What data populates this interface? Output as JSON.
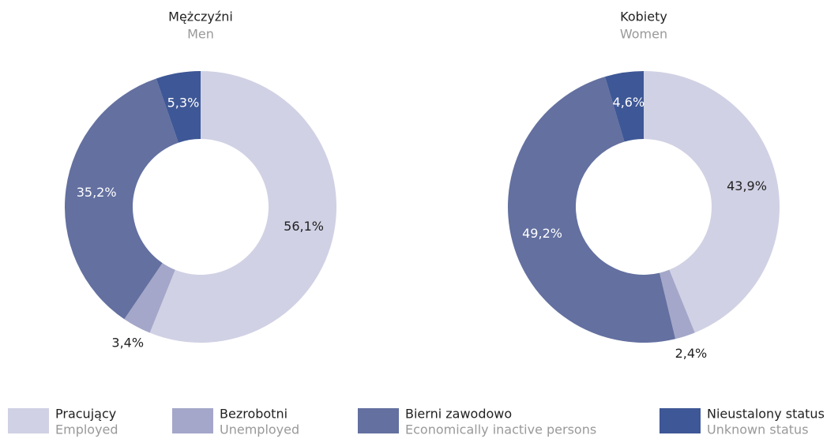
{
  "chart_data": [
    {
      "type": "pie",
      "title": "Mężczyźni",
      "subtitle": "Men",
      "values": [
        56.1,
        3.4,
        35.2,
        5.3
      ],
      "value_labels": [
        "56,1%",
        "3,4%",
        "35,2%",
        "5,3%"
      ],
      "colors": [
        "#d0d1e4",
        "#a4a7c9",
        "#6370a0",
        "#3e5796"
      ]
    },
    {
      "type": "pie",
      "title": "Kobiety",
      "subtitle": "Women",
      "values": [
        43.9,
        2.4,
        49.2,
        4.6
      ],
      "value_labels": [
        "43,9%",
        "2,4%",
        "49,2%",
        "4,6%"
      ],
      "colors": [
        "#d0d1e4",
        "#a4a7c9",
        "#6370a0",
        "#3e5796"
      ]
    }
  ],
  "legend": [
    {
      "label": "Pracujący",
      "sublabel": "Employed",
      "color": "#d0d1e4"
    },
    {
      "label": "Bezrobotni",
      "sublabel": "Unemployed",
      "color": "#a4a7c9"
    },
    {
      "label": "Bierni zawodowo",
      "sublabel": "Economically inactive persons",
      "color": "#6370a0"
    },
    {
      "label": "Nieustalony status",
      "sublabel": "Unknown status",
      "color": "#3e5796"
    }
  ]
}
